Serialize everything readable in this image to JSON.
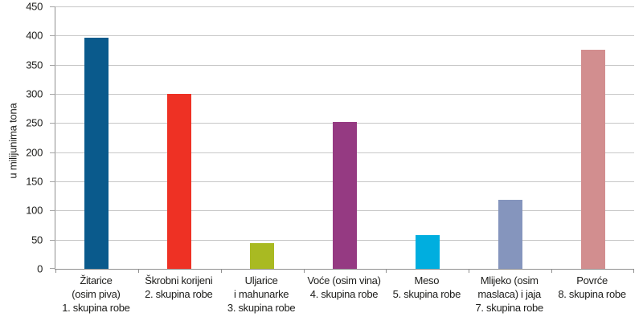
{
  "chart_data": {
    "type": "bar",
    "title": "",
    "xlabel": "",
    "ylabel": "u milijunima tona",
    "ylim": [
      0,
      450
    ],
    "ytick_step": 50,
    "ytick_labels": [
      "450",
      "400",
      "350",
      "300",
      "250",
      "200",
      "150",
      "100",
      "50",
      "0"
    ],
    "grid": true,
    "legend": "none",
    "categories": [
      "Žitarice (osim piva) 1. skupina robe",
      "Škrobni korijeni 2. skupina robe",
      "Uljarice i mahunarke 3. skupina robe",
      "Voće (osim vina) 4. skupina robe",
      "Meso 5. skupina robe",
      "Mlijeko (osim maslaca) i jaja 7. skupina robe",
      "Povrće 8. skupina robe"
    ],
    "category_label_lines": [
      [
        "Žitarice",
        "(osim piva)",
        "1. skupina robe"
      ],
      [
        "Škrobni korijeni",
        "2. skupina robe"
      ],
      [
        "Uljarice",
        "i mahunarke",
        "3. skupina robe"
      ],
      [
        "Voće (osim vina)",
        "4. skupina robe"
      ],
      [
        "Meso",
        "5. skupina robe"
      ],
      [
        "Mlijeko (osim",
        "maslaca) i jaja",
        "7. skupina robe"
      ],
      [
        "Povrće",
        "8. skupina robe"
      ]
    ],
    "values": [
      396,
      300,
      44,
      252,
      58,
      119,
      376
    ],
    "bar_colors": [
      "#0a5a8c",
      "#ee3124",
      "#a9ba22",
      "#953a82",
      "#00aedf",
      "#8595bd",
      "#d28e8f"
    ],
    "colors": {
      "gridline": "#c7c7c7",
      "axis_line": "#8f8f8f",
      "text": "#1d1d1b",
      "background": "#ffffff"
    }
  }
}
